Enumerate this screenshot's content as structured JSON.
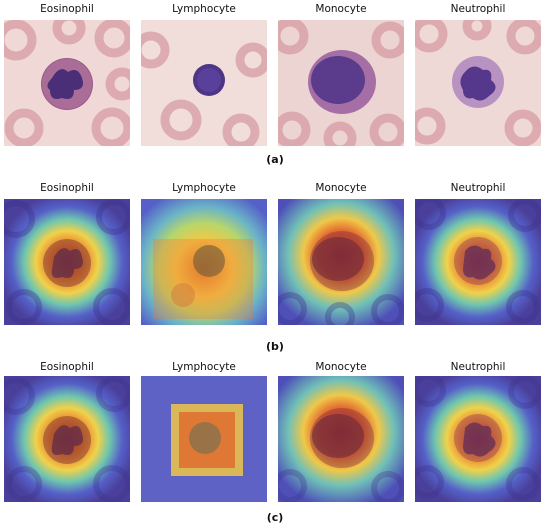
{
  "rows": [
    {
      "label": "(a)",
      "style": "micrograph",
      "titles": [
        "Eosinophil",
        "Lymphocyte",
        "Monocyte",
        "Neutrophil"
      ]
    },
    {
      "label": "(b)",
      "style": "heatmap",
      "titles": [
        "Eosinophil",
        "Lymphocyte",
        "Monocyte",
        "Neutrophil"
      ]
    },
    {
      "label": "(c)",
      "style": "heatmap",
      "titles": [
        "Eosinophil",
        "Lymphocyte",
        "Monocyte",
        "Neutrophil"
      ]
    }
  ],
  "colors": {
    "background_cell": "#efd8d6",
    "rbc": "#d9a0a6",
    "nucleus": "#5b3f8f",
    "heat_cool": "#5560c8",
    "heat_mid": "#f0d24a",
    "heat_hot": "#c8322a"
  }
}
